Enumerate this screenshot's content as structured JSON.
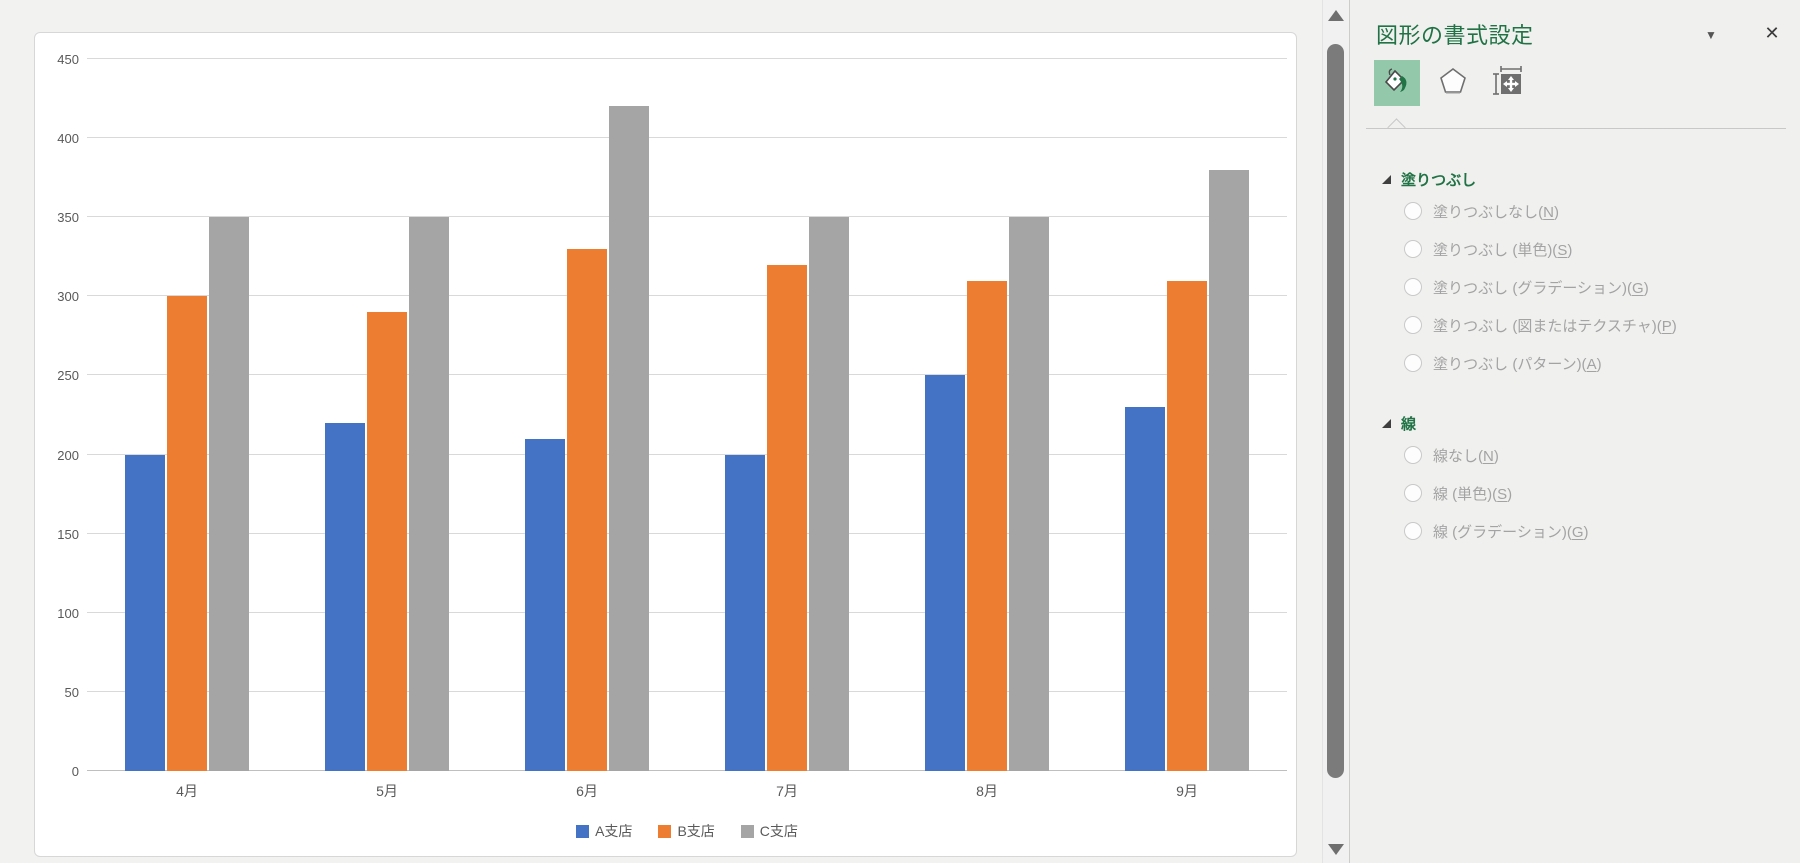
{
  "chart_data": {
    "type": "bar",
    "title": "",
    "categories": [
      "4月",
      "5月",
      "6月",
      "7月",
      "8月",
      "9月"
    ],
    "series": [
      {
        "name": "A支店",
        "color": "#4472C4",
        "values": [
          200,
          220,
          210,
          200,
          250,
          230
        ]
      },
      {
        "name": "B支店",
        "color": "#ED7D31",
        "values": [
          300,
          290,
          330,
          320,
          310,
          310
        ]
      },
      {
        "name": "C支店",
        "color": "#A5A5A5",
        "values": [
          350,
          350,
          420,
          350,
          350,
          380
        ]
      }
    ],
    "ylim": [
      0,
      450
    ],
    "yticks": [
      0,
      50,
      100,
      150,
      200,
      250,
      300,
      350,
      400,
      450
    ],
    "grid": true,
    "legend_position": "bottom"
  },
  "pane": {
    "title": "図形の書式設定",
    "chevron_icon": "▼",
    "close_icon": "✕",
    "tabs": [
      {
        "name": "fill-and-line",
        "selected": true
      },
      {
        "name": "effects",
        "selected": false
      },
      {
        "name": "size-and-properties",
        "selected": false
      }
    ],
    "sections": [
      {
        "heading": "塗りつぶし",
        "options": [
          {
            "text": "塗りつぶしなし",
            "key": "N"
          },
          {
            "text": "塗りつぶし (単色)",
            "key": "S"
          },
          {
            "text": "塗りつぶし (グラデーション)",
            "key": "G"
          },
          {
            "text": "塗りつぶし (図またはテクスチャ)",
            "key": "P"
          },
          {
            "text": "塗りつぶし (パターン)",
            "key": "A"
          }
        ]
      },
      {
        "heading": "線",
        "options": [
          {
            "text": "線なし",
            "key": "N"
          },
          {
            "text": "線 (単色)",
            "key": "S"
          },
          {
            "text": "線 (グラデーション)",
            "key": "G"
          }
        ]
      }
    ]
  },
  "colors": {
    "accent_green": "#217346",
    "axis_text": "#595959",
    "gridline": "#D9D9D9",
    "disabled_text": "#A3A3A3"
  }
}
